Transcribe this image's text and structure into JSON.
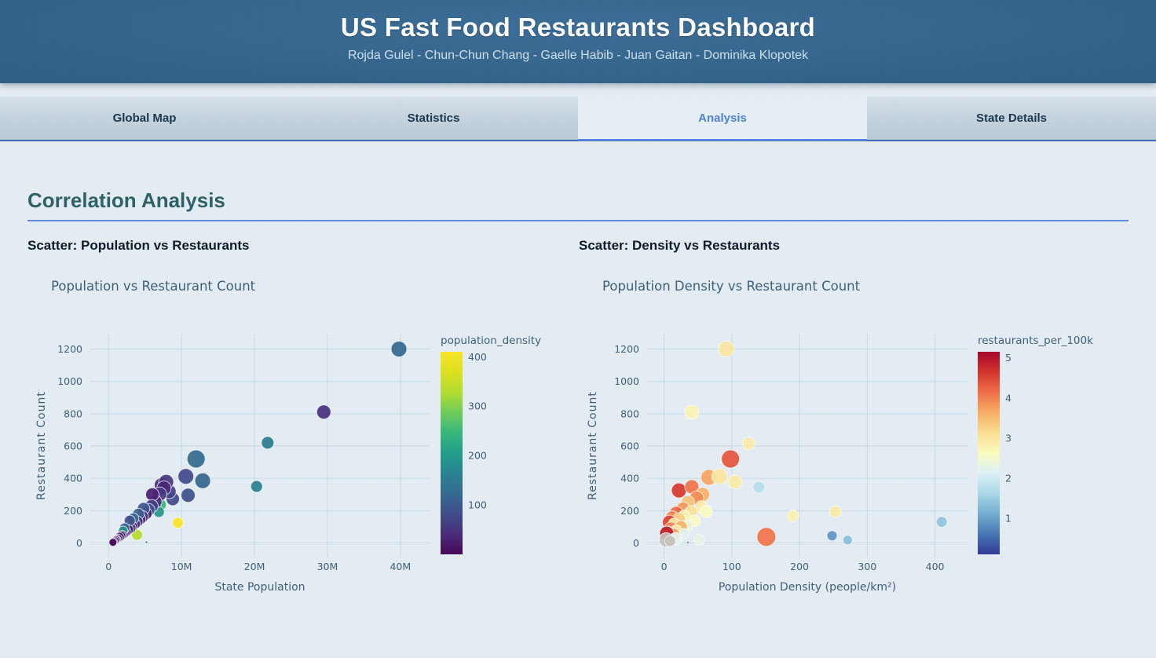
{
  "header": {
    "title": "US Fast Food Restaurants Dashboard",
    "subtitle": "Rojda Gulel - Chun-Chun Chang - Gaelle Habib - Juan Gaitan - Dominika Klopotek"
  },
  "tabs": [
    {
      "id": "global-map",
      "label": "Global Map",
      "active": false
    },
    {
      "id": "statistics",
      "label": "Statistics",
      "active": false
    },
    {
      "id": "analysis",
      "label": "Analysis",
      "active": true
    },
    {
      "id": "state-details",
      "label": "State Details",
      "active": false
    }
  ],
  "section_title": "Correlation Analysis",
  "colors": {
    "accent_blue": "#567fdd",
    "heading_teal": "#2b5f64",
    "chart_text": "#3e5c75",
    "grid": "#c5dbe7",
    "nan_marker": "#c9c2bd"
  },
  "chart_data": [
    {
      "type": "scatter",
      "heading": "Scatter: Population vs Restaurants",
      "title": "Population vs Restaurant Count",
      "xlabel": "State Population",
      "ylabel": "Restaurant Count",
      "xlim": [
        -2500000,
        44000000
      ],
      "ylim": [
        -90,
        1295
      ],
      "xticks": [
        {
          "v": 0,
          "label": "0"
        },
        {
          "v": 10000000,
          "label": "10M"
        },
        {
          "v": 20000000,
          "label": "20M"
        },
        {
          "v": 30000000,
          "label": "30M"
        },
        {
          "v": 40000000,
          "label": "40M"
        }
      ],
      "yticks": [
        0,
        200,
        400,
        600,
        800,
        1000,
        1200
      ],
      "grid": true,
      "legend_position": "right-colorbar",
      "colorbar": {
        "title": "population_density",
        "colormap": "viridis",
        "min": 0,
        "max": 410,
        "ticks": [
          100,
          200,
          300,
          400
        ]
      },
      "points": [
        {
          "x": 39800000,
          "y": 1200,
          "c": 120,
          "r": 10
        },
        {
          "x": 29500000,
          "y": 810,
          "c": 48,
          "r": 9
        },
        {
          "x": 21800000,
          "y": 620,
          "c": 155,
          "r": 8
        },
        {
          "x": 20300000,
          "y": 350,
          "c": 160,
          "r": 7.5
        },
        {
          "x": 12000000,
          "y": 520,
          "c": 125,
          "r": 11.5
        },
        {
          "x": 12900000,
          "y": 385,
          "c": 118,
          "r": 10
        },
        {
          "x": 10600000,
          "y": 412,
          "c": 80,
          "r": 10
        },
        {
          "x": 10900000,
          "y": 295,
          "c": 88,
          "r": 9
        },
        {
          "x": 8800000,
          "y": 272,
          "c": 78,
          "r": 8.5
        },
        {
          "x": 7300000,
          "y": 358,
          "c": 45,
          "r": 9.5
        },
        {
          "x": 8300000,
          "y": 318,
          "c": 70,
          "r": 9
        },
        {
          "x": 9500000,
          "y": 125,
          "c": 410,
          "r": 7
        },
        {
          "x": 7100000,
          "y": 237,
          "c": 245,
          "r": 7.5
        },
        {
          "x": 6900000,
          "y": 192,
          "c": 195,
          "r": 7
        },
        {
          "x": 3900000,
          "y": 50,
          "c": 330,
          "r": 7
        },
        {
          "x": 5200000,
          "y": 5,
          "c": 100,
          "r": 1.5
        },
        {
          "x": 7900000,
          "y": 378,
          "c": 55,
          "r": 9.5
        },
        {
          "x": 7600000,
          "y": 340,
          "c": 35,
          "r": 9
        },
        {
          "x": 7000000,
          "y": 302,
          "c": 58,
          "r": 9
        },
        {
          "x": 6400000,
          "y": 255,
          "c": 42,
          "r": 8.5
        },
        {
          "x": 6000000,
          "y": 300,
          "c": 30,
          "r": 8.5
        },
        {
          "x": 5900000,
          "y": 228,
          "c": 65,
          "r": 8.5
        },
        {
          "x": 5500000,
          "y": 205,
          "c": 88,
          "r": 8
        },
        {
          "x": 5100000,
          "y": 182,
          "c": 24,
          "r": 8
        },
        {
          "x": 4800000,
          "y": 212,
          "c": 95,
          "r": 8
        },
        {
          "x": 4600000,
          "y": 162,
          "c": 58,
          "r": 8
        },
        {
          "x": 4300000,
          "y": 148,
          "c": 34,
          "r": 7.5
        },
        {
          "x": 4100000,
          "y": 178,
          "c": 108,
          "r": 7.5
        },
        {
          "x": 3900000,
          "y": 132,
          "c": 52,
          "r": 7.5
        },
        {
          "x": 3600000,
          "y": 118,
          "c": 46,
          "r": 7
        },
        {
          "x": 3400000,
          "y": 152,
          "c": 128,
          "r": 7
        },
        {
          "x": 3200000,
          "y": 102,
          "c": 18,
          "r": 7
        },
        {
          "x": 3000000,
          "y": 92,
          "c": 72,
          "r": 7
        },
        {
          "x": 2900000,
          "y": 138,
          "c": 92,
          "r": 7
        },
        {
          "x": 2700000,
          "y": 82,
          "c": 14,
          "r": 6.5
        },
        {
          "x": 2400000,
          "y": 70,
          "c": 40,
          "r": 6.5
        },
        {
          "x": 2200000,
          "y": 92,
          "c": 112,
          "r": 6.5
        },
        {
          "x": 2100000,
          "y": 58,
          "c": 26,
          "r": 6.5
        },
        {
          "x": 2000000,
          "y": 75,
          "c": 185,
          "r": 6
        },
        {
          "x": 1900000,
          "y": 48,
          "c": 56,
          "r": 6
        },
        {
          "x": 1700000,
          "y": 44,
          "c": 10,
          "r": 6
        },
        {
          "x": 1500000,
          "y": 36,
          "c": 30,
          "r": 6
        },
        {
          "x": 1300000,
          "y": 28,
          "c": 20,
          "r": 5.5
        },
        {
          "x": 1100000,
          "y": 22,
          "c": 46,
          "r": 5.5
        },
        {
          "x": 1000000,
          "y": 18,
          "c": 14,
          "r": 5.5
        },
        {
          "x": 900000,
          "y": 14,
          "c": 8,
          "r": 5
        },
        {
          "x": 700000,
          "y": 8,
          "c": 26,
          "r": 5
        },
        {
          "x": 600000,
          "y": 4,
          "c": 5,
          "r": 5
        }
      ]
    },
    {
      "type": "scatter",
      "heading": "Scatter: Density vs Restaurants",
      "title": "Population Density vs Restaurant Count",
      "xlabel": "Population Density (people/km²)",
      "ylabel": "Restaurant Count",
      "xlim": [
        -25,
        448
      ],
      "ylim": [
        -90,
        1295
      ],
      "xticks": [
        {
          "v": 0,
          "label": "0"
        },
        {
          "v": 100,
          "label": "100"
        },
        {
          "v": 200,
          "label": "200"
        },
        {
          "v": 300,
          "label": "300"
        },
        {
          "v": 400,
          "label": "400"
        }
      ],
      "yticks": [
        0,
        200,
        400,
        600,
        800,
        1000,
        1200
      ],
      "grid": true,
      "legend_position": "right-colorbar",
      "colorbar": {
        "title": "restaurants_per_100k",
        "colormap": "rdylbu_r",
        "min": 0.1,
        "max": 5.15,
        "ticks": [
          1,
          2,
          3,
          4,
          5
        ]
      },
      "points": [
        {
          "x": 92,
          "y": 1200,
          "c": 3.0,
          "r": 10
        },
        {
          "x": 41,
          "y": 810,
          "c": 2.75,
          "r": 9
        },
        {
          "x": 125,
          "y": 615,
          "c": 2.9,
          "r": 8
        },
        {
          "x": 98,
          "y": 520,
          "c": 4.35,
          "r": 11.5
        },
        {
          "x": 140,
          "y": 345,
          "c": 1.75,
          "r": 7.5
        },
        {
          "x": 22,
          "y": 325,
          "c": 4.6,
          "r": 9.5
        },
        {
          "x": 41,
          "y": 348,
          "c": 4.1,
          "r": 9
        },
        {
          "x": 66,
          "y": 406,
          "c": 3.7,
          "r": 10
        },
        {
          "x": 82,
          "y": 412,
          "c": 3.0,
          "r": 10
        },
        {
          "x": 105,
          "y": 378,
          "c": 2.9,
          "r": 9
        },
        {
          "x": 57,
          "y": 300,
          "c": 3.6,
          "r": 9
        },
        {
          "x": 48,
          "y": 278,
          "c": 3.9,
          "r": 9
        },
        {
          "x": 35,
          "y": 252,
          "c": 3.4,
          "r": 8.5
        },
        {
          "x": 55,
          "y": 222,
          "c": 2.9,
          "r": 8
        },
        {
          "x": 28,
          "y": 212,
          "c": 3.8,
          "r": 8.5
        },
        {
          "x": 62,
          "y": 195,
          "c": 2.6,
          "r": 8
        },
        {
          "x": 40,
          "y": 192,
          "c": 3.1,
          "r": 8
        },
        {
          "x": 18,
          "y": 182,
          "c": 4.2,
          "r": 9
        },
        {
          "x": 30,
          "y": 168,
          "c": 2.8,
          "r": 7.5
        },
        {
          "x": 12,
          "y": 158,
          "c": 3.9,
          "r": 8.5
        },
        {
          "x": 22,
          "y": 148,
          "c": 3.3,
          "r": 8
        },
        {
          "x": 45,
          "y": 138,
          "c": 2.6,
          "r": 7.5
        },
        {
          "x": 8,
          "y": 128,
          "c": 4.5,
          "r": 9
        },
        {
          "x": 15,
          "y": 118,
          "c": 3.0,
          "r": 7.5
        },
        {
          "x": 35,
          "y": 108,
          "c": 2.4,
          "r": 7
        },
        {
          "x": 25,
          "y": 98,
          "c": 3.6,
          "r": 8
        },
        {
          "x": 10,
          "y": 88,
          "c": 4.0,
          "r": 8.5
        },
        {
          "x": 18,
          "y": 78,
          "c": 2.9,
          "r": 7
        },
        {
          "x": 6,
          "y": 68,
          "c": 3.3,
          "r": 7.5
        },
        {
          "x": 30,
          "y": 58,
          "c": 2.2,
          "r": 6.5
        },
        {
          "x": 14,
          "y": 52,
          "c": 3.8,
          "r": 8
        },
        {
          "x": 4,
          "y": 60,
          "c": 4.9,
          "r": 9
        },
        {
          "x": 190,
          "y": 168,
          "c": 2.8,
          "r": 7.5
        },
        {
          "x": 253,
          "y": 195,
          "c": 2.9,
          "r": 7.5
        },
        {
          "x": 151,
          "y": 38,
          "c": 4.1,
          "r": 12
        },
        {
          "x": 248,
          "y": 45,
          "c": 0.9,
          "r": 6.5
        },
        {
          "x": 271,
          "y": 18,
          "c": 1.3,
          "r": 6
        },
        {
          "x": 410,
          "y": 130,
          "c": 1.4,
          "r": 7
        },
        {
          "x": 17,
          "y": 25,
          "c": 2.2,
          "r": 8
        },
        {
          "x": 52,
          "y": 20,
          "c": 2.3,
          "r": 7
        },
        {
          "x": 3,
          "y": 20,
          "c": null,
          "r": 9
        },
        {
          "x": 9,
          "y": 12,
          "c": null,
          "r": 7
        },
        {
          "x": 35,
          "y": 3,
          "c": 0.6,
          "r": 1.5
        }
      ]
    }
  ]
}
